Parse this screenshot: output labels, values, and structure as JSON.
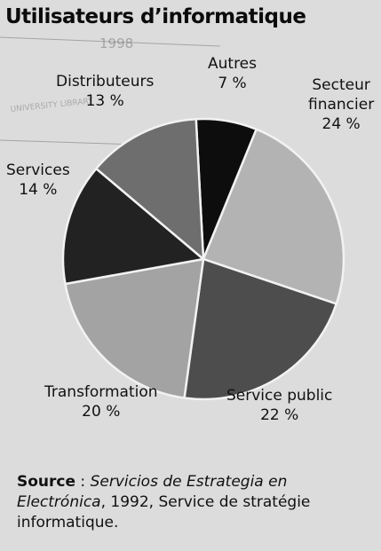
{
  "chart_data": {
    "type": "pie",
    "title": "Utilisateurs d’informatique",
    "slices": [
      {
        "label_lines": [
          "Autres"
        ],
        "value": 7,
        "display": "7 %",
        "color": "#0d0d0d"
      },
      {
        "label_lines": [
          "Secteur",
          "financier"
        ],
        "value": 24,
        "display": "24 %",
        "color": "#b3b3b3"
      },
      {
        "label_lines": [
          "Service public"
        ],
        "value": 22,
        "display": "22 %",
        "color": "#4d4d4d"
      },
      {
        "label_lines": [
          "Transformation"
        ],
        "value": 20,
        "display": "20 %",
        "color": "#a3a3a3"
      },
      {
        "label_lines": [
          "Services"
        ],
        "value": 14,
        "display": "14 %",
        "color": "#222222"
      },
      {
        "label_lines": [
          "Distributeurs"
        ],
        "value": 13,
        "display": "13 %",
        "color": "#6e6e6e"
      }
    ]
  },
  "source": {
    "key": "Source",
    "separator": " : ",
    "publication": "Servicios de Estrategia en Electrónica",
    "rest": ", 1992, Service de stratégie informatique."
  },
  "stamp": {
    "line1": "1998",
    "line2": "UNIVERSITY LIBRARY"
  }
}
